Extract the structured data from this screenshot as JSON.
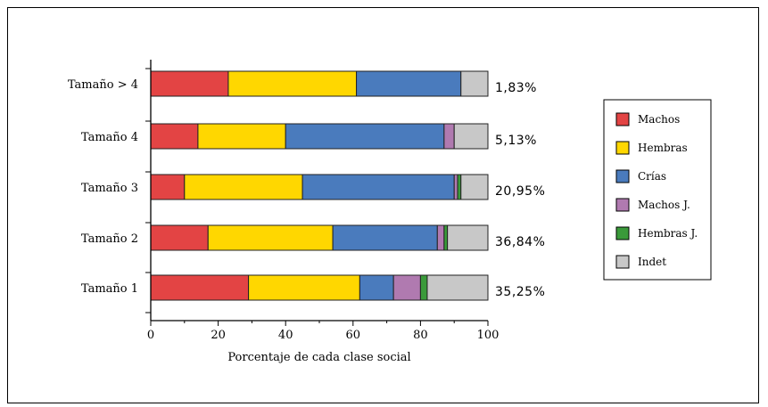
{
  "chart_data": {
    "type": "bar",
    "stacked": true,
    "orientation": "horizontal",
    "xlabel": "Porcentaje de cada clase social",
    "xlim": [
      0,
      100
    ],
    "xticks": [
      "0",
      "20",
      "40",
      "60",
      "80",
      "100"
    ],
    "categories": [
      "Tamaño > 4",
      "Tamaño 4",
      "Tamaño 3",
      "Tamaño 2",
      "Tamaño 1"
    ],
    "bar_labels": [
      "1,83%",
      "5,13%",
      "20,95%",
      "36,84%",
      "35,25%"
    ],
    "series": [
      {
        "name": "Machos",
        "color": "#e34444",
        "values": [
          23,
          14,
          10,
          17,
          29
        ]
      },
      {
        "name": "Hembras",
        "color": "#ffd700",
        "values": [
          38,
          26,
          35,
          37,
          33
        ]
      },
      {
        "name": "Crías",
        "color": "#4a7bbd",
        "values": [
          31,
          47,
          45,
          31,
          10
        ]
      },
      {
        "name": "Machos J.",
        "color": "#b07ab0",
        "values": [
          0,
          3,
          1,
          2,
          8
        ]
      },
      {
        "name": "Hembras J.",
        "color": "#3a9a3a",
        "values": [
          0,
          0,
          1,
          1,
          2
        ]
      },
      {
        "name": "Indet",
        "color": "#c8c8c8",
        "values": [
          8,
          10,
          8,
          12,
          18
        ]
      }
    ],
    "legend_position": "right",
    "grid": false
  }
}
